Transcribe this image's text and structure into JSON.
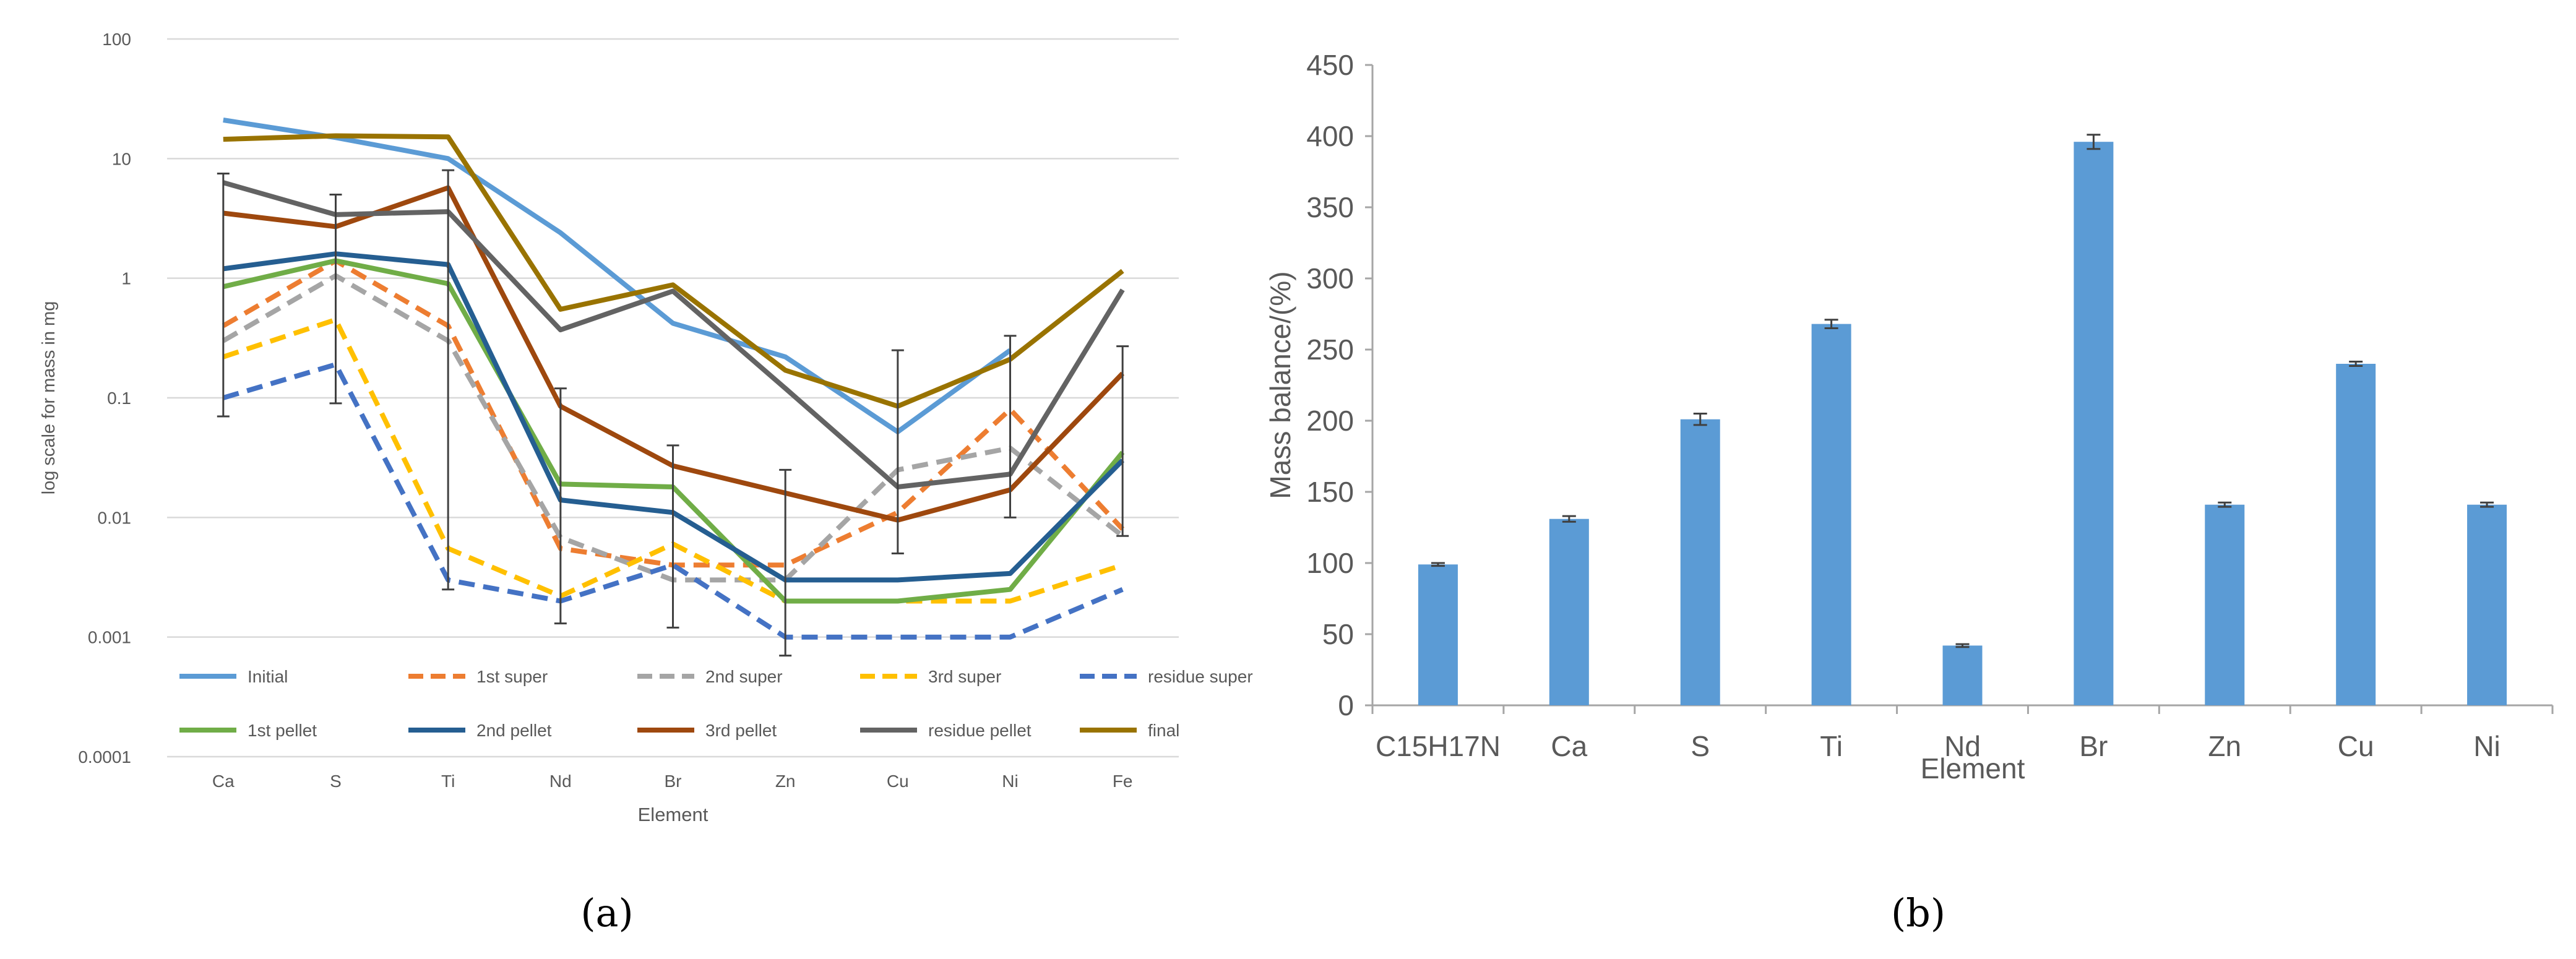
{
  "chart_data": [
    {
      "type": "line",
      "panel_label": "(a)",
      "xlabel": "Element",
      "ylabel": "log scale for mass in mg",
      "yscale": "log",
      "ylim": [
        0.0001,
        100
      ],
      "y_ticks": [
        "0.0001",
        "0.001",
        "0.01",
        "0.1",
        "1",
        "10",
        "100"
      ],
      "categories": [
        "Ca",
        "S",
        "Ti",
        "Nd",
        "Br",
        "Zn",
        "Cu",
        "Ni",
        "Fe"
      ],
      "legend_position": "bottom-inside",
      "series": [
        {
          "name": "Initial",
          "color": "#5B9BD5",
          "dash": "solid",
          "values": [
            21,
            15,
            10,
            2.4,
            0.42,
            0.22,
            0.052,
            0.25,
            null
          ]
        },
        {
          "name": "1st super",
          "color": "#ED7D31",
          "dash": "dashed",
          "values": [
            0.4,
            1.4,
            0.4,
            0.0055,
            0.004,
            0.004,
            0.011,
            0.08,
            0.008
          ]
        },
        {
          "name": "2nd super",
          "color": "#A5A5A5",
          "dash": "dashed",
          "values": [
            0.3,
            1.05,
            0.3,
            0.0068,
            0.003,
            0.003,
            0.025,
            0.038,
            0.007
          ]
        },
        {
          "name": "3rd super",
          "color": "#FFC000",
          "dash": "dashed",
          "values": [
            0.22,
            0.45,
            0.0055,
            0.0022,
            0.006,
            0.002,
            0.002,
            0.002,
            0.004
          ]
        },
        {
          "name": "residue super",
          "color": "#4472C4",
          "dash": "dashed",
          "values": [
            0.1,
            0.19,
            0.003,
            0.002,
            0.004,
            0.001,
            0.001,
            0.001,
            0.0025
          ]
        },
        {
          "name": "1st pellet",
          "color": "#70AD47",
          "dash": "solid",
          "values": [
            0.85,
            1.4,
            0.9,
            0.019,
            0.018,
            0.002,
            0.002,
            0.0025,
            0.035
          ]
        },
        {
          "name": "2nd pellet",
          "color": "#255E91",
          "dash": "solid",
          "values": [
            1.2,
            1.6,
            1.3,
            0.014,
            0.011,
            0.003,
            0.003,
            0.0034,
            0.03
          ]
        },
        {
          "name": "3rd pellet",
          "color": "#9E480E",
          "dash": "solid",
          "values": [
            3.5,
            2.7,
            5.7,
            0.085,
            0.027,
            0.016,
            0.0095,
            0.017,
            0.16
          ]
        },
        {
          "name": "residue pellet",
          "color": "#636363",
          "dash": "solid",
          "values": [
            6.3,
            3.4,
            3.6,
            0.37,
            0.78,
            0.12,
            0.018,
            0.023,
            0.8
          ]
        },
        {
          "name": "final",
          "color": "#997300",
          "dash": "solid",
          "values": [
            14.5,
            15.5,
            15.2,
            0.55,
            0.88,
            0.17,
            0.085,
            0.21,
            1.15
          ]
        }
      ],
      "error_bars": [
        {
          "category": "Ca",
          "low": 0.07,
          "high": 7.5
        },
        {
          "category": "S",
          "low": 0.09,
          "high": 5
        },
        {
          "category": "Ti",
          "low": 0.0025,
          "high": 8
        },
        {
          "category": "Nd",
          "low": 0.0013,
          "high": 0.12
        },
        {
          "category": "Br",
          "low": 0.0012,
          "high": 0.04
        },
        {
          "category": "Zn",
          "low": 0.0007,
          "high": 0.025
        },
        {
          "category": "Cu",
          "low": 0.005,
          "high": 0.25
        },
        {
          "category": "Ni",
          "low": 0.01,
          "high": 0.33
        },
        {
          "category": "Fe",
          "low": 0.007,
          "high": 0.27
        }
      ]
    },
    {
      "type": "bar",
      "panel_label": "(b)",
      "xlabel": "Element",
      "ylabel": "Mass balance/(%)",
      "ylim": [
        0,
        450
      ],
      "y_ticks": [
        0,
        50,
        100,
        150,
        200,
        250,
        300,
        350,
        400,
        450
      ],
      "categories": [
        "C15H17N",
        "Ca",
        "S",
        "Ti",
        "Nd",
        "Br",
        "Zn",
        "Cu",
        "Ni"
      ],
      "values": [
        99,
        131,
        201,
        268,
        42,
        396,
        141,
        240,
        141
      ],
      "errors": [
        1,
        2,
        4,
        3,
        1,
        5,
        1.5,
        1.5,
        1.5
      ],
      "bar_color": "#5B9BD5"
    }
  ]
}
